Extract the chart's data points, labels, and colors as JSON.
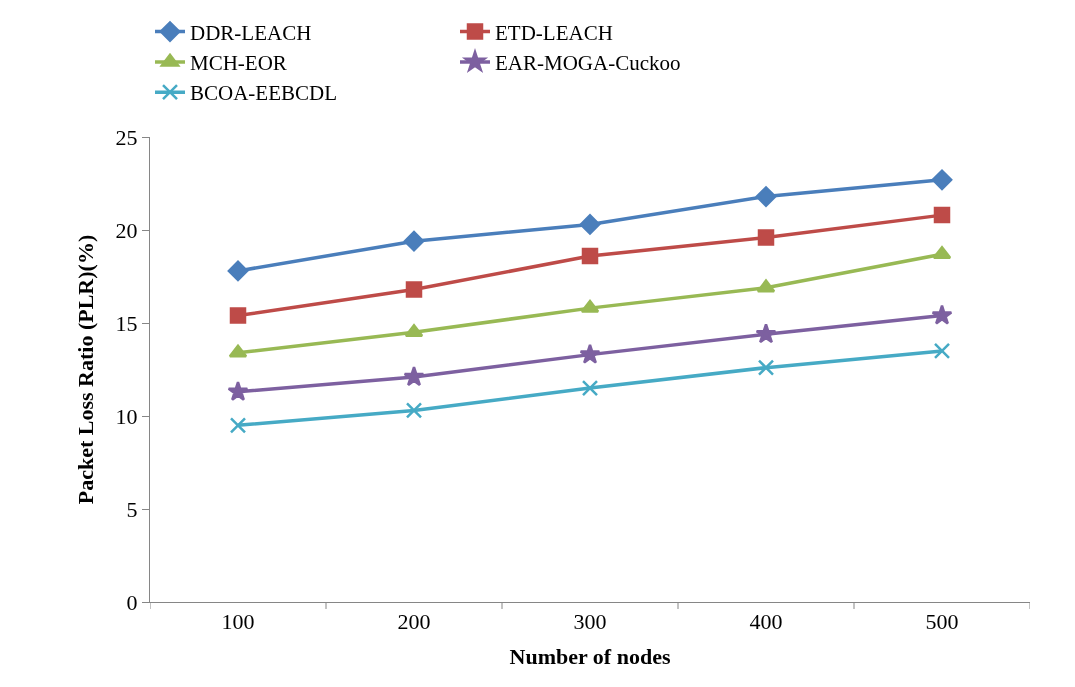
{
  "chart_data": {
    "type": "line",
    "xlabel": "Number of nodes",
    "ylabel": "Packet Loss Ratio (PLR)(%)",
    "categories": [
      "100",
      "200",
      "300",
      "400",
      "500"
    ],
    "ylim": [
      0,
      25
    ],
    "yticks": [
      0,
      5,
      10,
      15,
      20,
      25
    ],
    "legend": "top",
    "series": [
      {
        "name": "DDR-LEACH",
        "color": "#4a7ebb",
        "marker": "diamond",
        "values": [
          17.8,
          19.4,
          20.3,
          21.8,
          22.7
        ]
      },
      {
        "name": "ETD-LEACH",
        "color": "#be4b48",
        "marker": "square",
        "values": [
          15.4,
          16.8,
          18.6,
          19.6,
          20.8
        ]
      },
      {
        "name": "MCH-EOR",
        "color": "#98b954",
        "marker": "triangle",
        "values": [
          13.4,
          14.5,
          15.8,
          16.9,
          18.7
        ]
      },
      {
        "name": "EAR-MOGA-Cuckoo",
        "color": "#7d60a0",
        "marker": "star",
        "values": [
          11.3,
          12.1,
          13.3,
          14.4,
          15.4
        ]
      },
      {
        "name": "BCOA-EEBCDL",
        "color": "#46aac5",
        "marker": "cross",
        "values": [
          9.5,
          10.3,
          11.5,
          12.6,
          13.5
        ]
      }
    ]
  }
}
